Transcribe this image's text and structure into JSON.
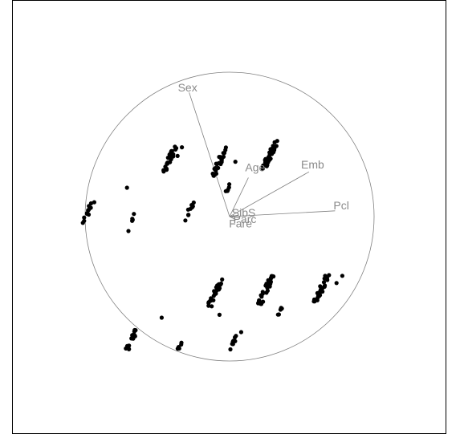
{
  "chart_data": {
    "type": "scatter",
    "title": "",
    "description_axes": "radial projection plot, unit circle, no axis ticks",
    "xlim": [
      -1.25,
      1.25
    ],
    "ylim": [
      -1.25,
      1.25
    ],
    "colors": {
      "points": "#000000",
      "vectors": "#808080",
      "labels": "#8a8a8a",
      "circle": "#808080"
    },
    "vectors": [
      {
        "label": "Sex",
        "x": -0.28,
        "y": 0.86
      },
      {
        "label": "Age",
        "x": 0.13,
        "y": 0.27
      },
      {
        "label": "Emb",
        "x": 0.55,
        "y": 0.31
      },
      {
        "label": "Pcl",
        "x": 0.73,
        "y": 0.04
      },
      {
        "label": "SibS",
        "x": 0.06,
        "y": 0.01
      },
      {
        "label": "Parc",
        "x": 0.07,
        "y": -0.01
      },
      {
        "label": "Fare",
        "x": 0.04,
        "y": -0.02
      }
    ],
    "clusters": [
      {
        "cx": -0.42,
        "cy": 0.39,
        "n": 28,
        "spread": 0.1
      },
      {
        "cx": -0.07,
        "cy": 0.38,
        "n": 26,
        "spread": 0.1
      },
      {
        "cx": 0.28,
        "cy": 0.43,
        "n": 40,
        "spread": 0.1
      },
      {
        "cx": -0.98,
        "cy": 0.03,
        "n": 14,
        "spread": 0.08
      },
      {
        "cx": -0.67,
        "cy": -0.01,
        "n": 4,
        "spread": 0.03
      },
      {
        "cx": -0.28,
        "cy": 0.04,
        "n": 10,
        "spread": 0.07
      },
      {
        "cx": -0.01,
        "cy": 0.2,
        "n": 5,
        "spread": 0.04
      },
      {
        "cx": -0.1,
        "cy": -0.53,
        "n": 28,
        "spread": 0.1
      },
      {
        "cx": 0.25,
        "cy": -0.51,
        "n": 32,
        "spread": 0.1
      },
      {
        "cx": 0.64,
        "cy": -0.49,
        "n": 28,
        "spread": 0.1
      },
      {
        "cx": 0.34,
        "cy": -0.67,
        "n": 5,
        "spread": 0.04
      },
      {
        "cx": -0.68,
        "cy": -0.86,
        "n": 18,
        "spread": 0.08
      },
      {
        "cx": -0.35,
        "cy": -0.91,
        "n": 5,
        "spread": 0.04
      },
      {
        "cx": 0.03,
        "cy": -0.87,
        "n": 8,
        "spread": 0.05
      }
    ],
    "singles": [
      {
        "x": -0.71,
        "y": 0.2
      },
      {
        "x": -0.7,
        "y": -0.1
      },
      {
        "x": -0.36,
        "y": 0.42
      },
      {
        "x": -0.33,
        "y": 0.48
      },
      {
        "x": 0.04,
        "y": 0.38
      },
      {
        "x": -0.47,
        "y": -0.7
      },
      {
        "x": -0.07,
        "y": -0.68
      },
      {
        "x": 0.08,
        "y": -0.8
      },
      {
        "x": 0.78,
        "y": -0.41
      },
      {
        "x": 0.74,
        "y": -0.46
      }
    ]
  }
}
